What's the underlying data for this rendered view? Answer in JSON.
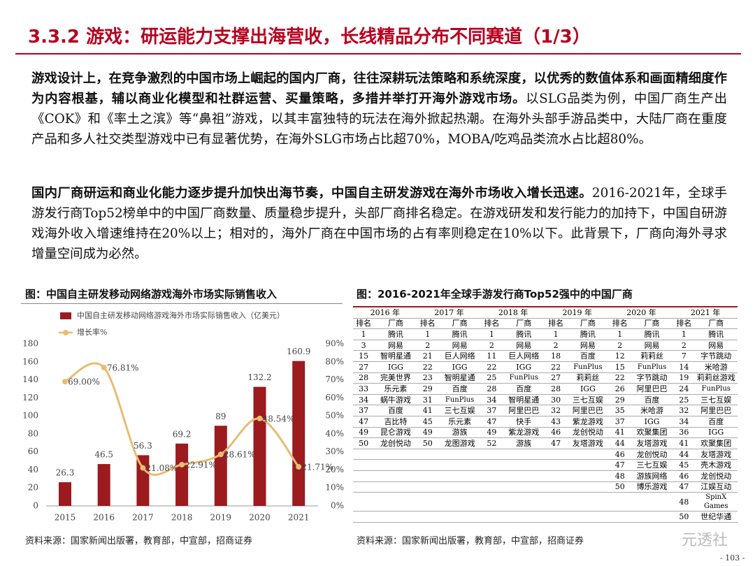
{
  "header": {
    "title": "3.3.2 游戏：研运能力支撑出海营收，长线精品分布不同赛道（1/3）"
  },
  "paragraphs": [
    {
      "bold": "游戏设计上，在竞争激烈的中国市场上崛起的国内厂商，往往深耕玩法策略和系统深度，以优秀的数值体系和画面精细度作为内容根基，辅以商业化模型和社群运营、买量策略，多措并举打开海外游戏市场。",
      "text": "以SLG品类为例，中国厂商生产出《COK》和《率土之滨》等“鼻祖”游戏，以其丰富独特的玩法在海外掀起热潮。在海外头部手游品类中，大陆厂商在重度产品和多人社交类型游戏中已有显著优势，在海外SLG市场占比超70%，MOBA/吃鸡品类流水占比超80%。"
    },
    {
      "bold": "国内厂商研运和商业化能力逐步提升加快出海节奏，中国自主研发游戏在海外市场收入增长迅速。",
      "text": "2016-2021年，全球手游发行商Top52榜单中的中国厂商数量、质量稳步提升，头部厂商排名稳定。在游戏研发和发行能力的加持下，中国自研游戏海外收入增速维持在20%以上；相对的，海外厂商在中国市场的占有率则稳定在10%以下。此背景下，厂商向海外寻求增量空间成为必然。"
    }
  ],
  "chart_data": {
    "type": "bar",
    "title": "图：中国自主研发移动网络游戏海外市场实际销售收入",
    "categories": [
      "2015",
      "2016",
      "2017",
      "2018",
      "2019",
      "2020",
      "2021"
    ],
    "series": [
      {
        "name": "中国自主研发移动网络游戏海外市场实际销售收入（亿美元）",
        "type": "bar",
        "color": "#9b1b1f",
        "values": [
          26.3,
          46.5,
          56.3,
          69.2,
          89,
          132.2,
          160.9
        ]
      },
      {
        "name": "增长率%",
        "type": "line",
        "axis": "y2",
        "color": "#e9bc72",
        "values": [
          69.0,
          76.81,
          21.08,
          22.91,
          28.61,
          48.54,
          21.71
        ],
        "value_labels": [
          "69.00%",
          "76.81%",
          "21.08%",
          "22.91%",
          "28.61%",
          "48.54%",
          "21.71%"
        ]
      }
    ],
    "ylim": [
      0,
      180
    ],
    "yticks": [
      0,
      20,
      40,
      60,
      80,
      100,
      120,
      140,
      160,
      180
    ],
    "y2lim": [
      0,
      90
    ],
    "y2ticks": [
      {
        "value": 0,
        "label": "0%"
      },
      {
        "value": 10,
        "label": "10%"
      },
      {
        "value": 20,
        "label": "20%"
      },
      {
        "value": 30,
        "label": "30%"
      },
      {
        "value": 40,
        "label": "40%"
      },
      {
        "value": 50,
        "label": "50%"
      },
      {
        "value": 60,
        "label": "60%"
      },
      {
        "value": 70,
        "label": "70%"
      },
      {
        "value": 80,
        "label": "80%"
      },
      {
        "value": 90,
        "label": "90%"
      }
    ],
    "source": "资料来源：国家新闻出版署，教育部，中宣部，招商证券"
  },
  "table": {
    "title": "图：2016-2021年全球手游发行商Top52强中的中国厂商",
    "header": [
      "排名",
      "厂商"
    ],
    "columns": [
      {
        "year": "2016 年",
        "entries": [
          [
            "1",
            "腾讯"
          ],
          [
            "3",
            "网易"
          ],
          [
            "15",
            "智明星通"
          ],
          [
            "27",
            "IGG"
          ],
          [
            "28",
            "完美世界"
          ],
          [
            "33",
            "乐元素"
          ],
          [
            "34",
            "蜗牛游戏"
          ],
          [
            "37",
            "百度"
          ],
          [
            "47",
            "吉比特"
          ],
          [
            "49",
            "昆仑游戏"
          ],
          [
            "50",
            "龙创悦动"
          ]
        ]
      },
      {
        "year": "2017 年",
        "entries": [
          [
            "1",
            "腾讯"
          ],
          [
            "2",
            "网易"
          ],
          [
            "21",
            "巨人网络"
          ],
          [
            "22",
            "IGG"
          ],
          [
            "23",
            "智明星通"
          ],
          [
            "29",
            "百度"
          ],
          [
            "31",
            "FunPlus"
          ],
          [
            "41",
            "三七互娱"
          ],
          [
            "45",
            "乐元素"
          ],
          [
            "49",
            "游族"
          ],
          [
            "50",
            "龙图游戏"
          ]
        ]
      },
      {
        "year": "2018 年",
        "entries": [
          [
            "1",
            "腾讯"
          ],
          [
            "2",
            "网易"
          ],
          [
            "11",
            "巨人网络"
          ],
          [
            "22",
            "IGG"
          ],
          [
            "25",
            "FunPlus"
          ],
          [
            "28",
            "百度"
          ],
          [
            "34",
            "智明星通"
          ],
          [
            "37",
            "阿里巴巴"
          ],
          [
            "47",
            "快手"
          ],
          [
            "49",
            "紫龙游戏"
          ],
          [
            "52",
            "游族"
          ]
        ]
      },
      {
        "year": "2019 年",
        "entries": [
          [
            "1",
            "腾讯"
          ],
          [
            "2",
            "网易"
          ],
          [
            "18",
            "百度"
          ],
          [
            "22",
            "FunPlus"
          ],
          [
            "27",
            "莉莉丝"
          ],
          [
            "28",
            "IGG"
          ],
          [
            "30",
            "三七互娱"
          ],
          [
            "32",
            "阿里巴巴"
          ],
          [
            "43",
            "紫龙游戏"
          ],
          [
            "46",
            "龙创悦动"
          ],
          [
            "47",
            "友塔游戏"
          ]
        ]
      },
      {
        "year": "2020 年",
        "entries": [
          [
            "1",
            "腾讯"
          ],
          [
            "2",
            "网易"
          ],
          [
            "12",
            "莉莉丝"
          ],
          [
            "15",
            "FunPlus"
          ],
          [
            "22",
            "字节跳动"
          ],
          [
            "26",
            "阿里巴巴"
          ],
          [
            "29",
            "百度"
          ],
          [
            "35",
            "米哈游"
          ],
          [
            "37",
            "IGG"
          ],
          [
            "41",
            "欢聚集团"
          ],
          [
            "44",
            "友塔游戏"
          ],
          [
            "46",
            "龙创悦动"
          ],
          [
            "47",
            "三七互娱"
          ],
          [
            "48",
            "游族网络"
          ],
          [
            "50",
            "博乐游戏"
          ]
        ]
      },
      {
        "year": "2021 年",
        "entries": [
          [
            "1",
            "腾讯"
          ],
          [
            "2",
            "网易"
          ],
          [
            "7",
            "字节跳动"
          ],
          [
            "14",
            "米哈游"
          ],
          [
            "19",
            "莉莉丝游戏"
          ],
          [
            "24",
            "FunPlus"
          ],
          [
            "25",
            "三七互娱"
          ],
          [
            "32",
            "阿里巴巴"
          ],
          [
            "34",
            "百度"
          ],
          [
            "36",
            "IGG"
          ],
          [
            "41",
            "欢聚集团"
          ],
          [
            "44",
            "友塔游戏"
          ],
          [
            "45",
            "壳木游戏"
          ],
          [
            "46",
            "龙创悦动"
          ],
          [
            "47",
            "江娱互动"
          ],
          [
            "48",
            "SpinX Games"
          ],
          [
            "50",
            "世纪华通"
          ]
        ]
      }
    ],
    "source": "资料来源：国家新闻出版署，教育部，中宣部，招商证券"
  },
  "watermark": "元透社",
  "page_number": "- 103 -"
}
